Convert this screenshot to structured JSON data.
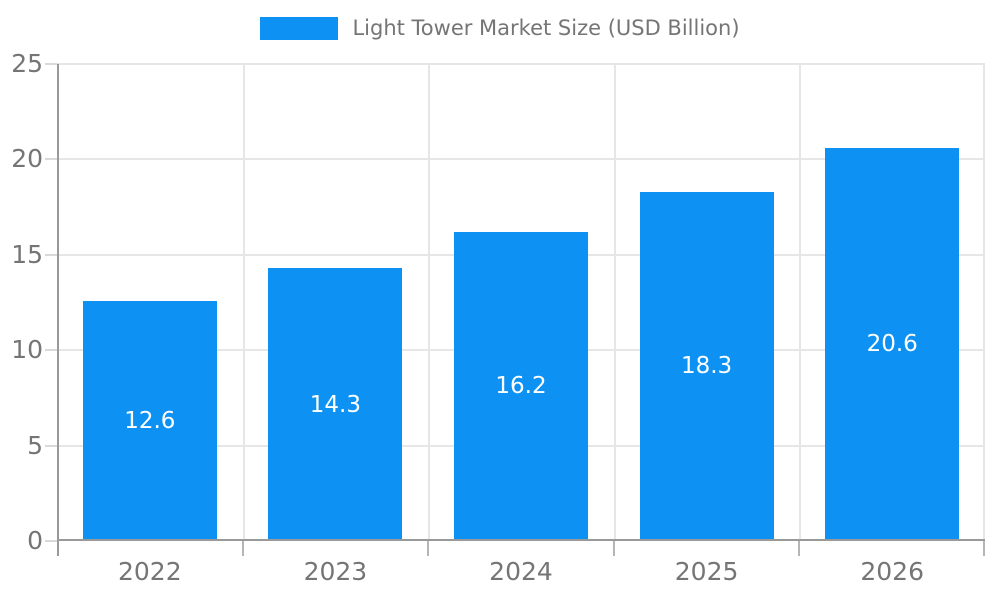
{
  "legend": {
    "label": "Light Tower Market Size (USD Billion)"
  },
  "chart_data": {
    "type": "bar",
    "title": "Light Tower Market Size (USD Billion)",
    "categories": [
      "2022",
      "2023",
      "2024",
      "2025",
      "2026"
    ],
    "values": [
      12.6,
      14.3,
      16.2,
      18.3,
      20.6
    ],
    "value_labels": [
      "12.6",
      "14.3",
      "16.2",
      "18.3",
      "20.6"
    ],
    "xlabel": "",
    "ylabel": "",
    "ylim": [
      0,
      25
    ],
    "yticks": [
      0,
      5,
      10,
      15,
      20,
      25
    ],
    "grid": true,
    "legend_position": "top",
    "colors": {
      "bar": "#0d92f4",
      "value_label": "#ffffff",
      "axis_text": "#757575",
      "axis_line": "#999999",
      "gridline": "#e6e6e6"
    }
  }
}
